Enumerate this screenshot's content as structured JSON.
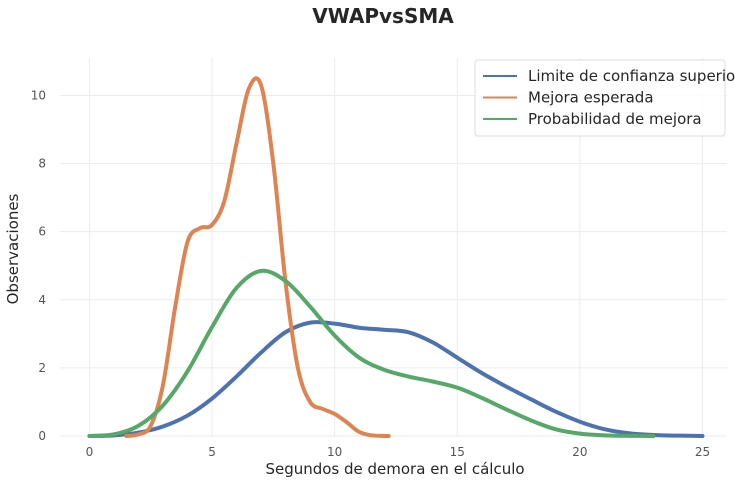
{
  "chart_data": {
    "type": "line",
    "title": "VWAPvsSMA",
    "xlabel": "Segundos de demora en el cálculo",
    "ylabel": "Observaciones",
    "xlim": [
      -1.2,
      26
    ],
    "ylim": [
      0,
      11.1
    ],
    "xticks": [
      0,
      5,
      10,
      15,
      20,
      25
    ],
    "yticks": [
      0,
      2,
      4,
      6,
      8,
      10
    ],
    "grid": true,
    "legend_position": "top-right",
    "series": [
      {
        "name": "Limite de confianza superior",
        "color": "#4c72b0",
        "x": [
          0,
          1,
          2,
          3,
          4,
          5,
          6,
          7,
          8,
          9,
          10,
          11,
          12,
          13,
          14,
          15,
          16,
          17,
          18,
          19,
          20,
          21,
          22,
          23,
          24,
          25
        ],
        "y": [
          0,
          0.02,
          0.1,
          0.28,
          0.6,
          1.1,
          1.75,
          2.45,
          3.05,
          3.33,
          3.3,
          3.18,
          3.12,
          3.05,
          2.75,
          2.3,
          1.85,
          1.45,
          1.08,
          0.72,
          0.42,
          0.2,
          0.08,
          0.03,
          0.01,
          0
        ]
      },
      {
        "name": "Mejora esperada",
        "color": "#dd8452",
        "x": [
          1.5,
          2,
          2.5,
          3,
          3.5,
          4,
          4.5,
          5,
          5.5,
          6,
          6.5,
          7,
          7.5,
          8,
          8.5,
          9,
          9.5,
          10,
          10.5,
          11,
          11.5,
          12.2
        ],
        "y": [
          0,
          0.05,
          0.3,
          1.5,
          3.8,
          5.7,
          6.1,
          6.2,
          6.9,
          8.6,
          10.2,
          10.3,
          8.0,
          4.5,
          2.0,
          1.0,
          0.8,
          0.65,
          0.4,
          0.12,
          0.02,
          0
        ]
      },
      {
        "name": "Probabilidad de mejora",
        "color": "#55a868",
        "x": [
          0,
          1,
          2,
          3,
          4,
          5,
          6,
          7,
          8,
          9,
          10,
          11,
          12,
          13,
          14,
          15,
          16,
          17,
          18,
          19,
          20,
          21,
          22,
          23
        ],
        "y": [
          0,
          0.05,
          0.3,
          0.9,
          1.9,
          3.2,
          4.35,
          4.85,
          4.55,
          3.8,
          2.95,
          2.3,
          1.95,
          1.75,
          1.6,
          1.42,
          1.12,
          0.78,
          0.46,
          0.2,
          0.07,
          0.02,
          0.005,
          0
        ]
      }
    ]
  }
}
